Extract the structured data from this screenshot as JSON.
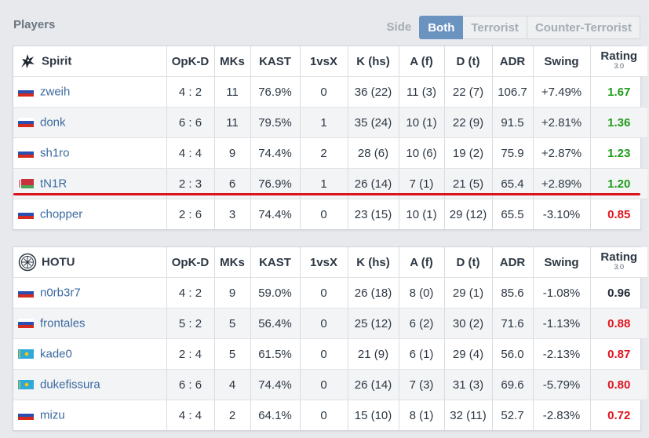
{
  "header": {
    "title": "Players",
    "side_label": "Side",
    "side_buttons": [
      "Both",
      "Terrorist",
      "Counter-Terrorist"
    ],
    "active_side": "Both"
  },
  "columns": [
    "OpK-D",
    "MKs",
    "KAST",
    "1vsX",
    "K (hs)",
    "A (f)",
    "D (t)",
    "ADR",
    "Swing",
    "Rating"
  ],
  "rating_version": "3.0",
  "colors": {
    "rating_good": "#1e9c18",
    "rating_bad": "#e0141c",
    "rating_neutral": "#1f2833",
    "highlight_line": "#d9141f",
    "active_button": "#6b93c0"
  },
  "teams": [
    {
      "name": "Spirit",
      "logo_icon": "spirit-dragon-logo-icon",
      "players": [
        {
          "name": "zweih",
          "flag": "russia-flag-icon",
          "stats": [
            "4 : 2",
            "11",
            "76.9%",
            "0",
            "36 (22)",
            "11 (3)",
            "22 (7)",
            "106.7",
            "+7.49%"
          ],
          "rating": "1.67",
          "rating_class": "good"
        },
        {
          "name": "donk",
          "flag": "russia-flag-icon",
          "stats": [
            "6 : 6",
            "11",
            "79.5%",
            "1",
            "35 (24)",
            "10 (1)",
            "22 (9)",
            "91.5",
            "+2.81%"
          ],
          "rating": "1.36",
          "rating_class": "good"
        },
        {
          "name": "sh1ro",
          "flag": "russia-flag-icon",
          "stats": [
            "4 : 4",
            "9",
            "74.4%",
            "2",
            "28 (6)",
            "10 (6)",
            "19 (2)",
            "75.9",
            "+2.87%"
          ],
          "rating": "1.23",
          "rating_class": "good"
        },
        {
          "name": "tN1R",
          "flag": "belarus-flag-icon",
          "stats": [
            "2 : 3",
            "6",
            "76.9%",
            "1",
            "26 (14)",
            "7 (1)",
            "21 (5)",
            "65.4",
            "+2.89%"
          ],
          "rating": "1.20",
          "rating_class": "good"
        },
        {
          "name": "chopper",
          "flag": "russia-flag-icon",
          "stats": [
            "2 : 6",
            "3",
            "74.4%",
            "0",
            "23 (15)",
            "10 (1)",
            "29 (12)",
            "65.5",
            "-3.10%"
          ],
          "rating": "0.85",
          "rating_class": "bad"
        }
      ]
    },
    {
      "name": "HOTU",
      "logo_icon": "hotu-emblem-logo-icon",
      "players": [
        {
          "name": "n0rb3r7",
          "flag": "russia-flag-icon",
          "stats": [
            "4 : 2",
            "9",
            "59.0%",
            "0",
            "26 (18)",
            "8 (0)",
            "29 (1)",
            "85.6",
            "-1.08%"
          ],
          "rating": "0.96",
          "rating_class": "neutral"
        },
        {
          "name": "frontales",
          "flag": "russia-flag-icon",
          "stats": [
            "5 : 2",
            "5",
            "56.4%",
            "0",
            "25 (12)",
            "6 (2)",
            "30 (2)",
            "71.6",
            "-1.13%"
          ],
          "rating": "0.88",
          "rating_class": "bad"
        },
        {
          "name": "kade0",
          "flag": "kazakhstan-flag-icon",
          "stats": [
            "2 : 4",
            "5",
            "61.5%",
            "0",
            "21 (9)",
            "6 (1)",
            "29 (4)",
            "56.0",
            "-2.13%"
          ],
          "rating": "0.87",
          "rating_class": "bad"
        },
        {
          "name": "dukefissura",
          "flag": "kazakhstan-flag-icon",
          "stats": [
            "6 : 6",
            "4",
            "74.4%",
            "0",
            "26 (14)",
            "7 (3)",
            "31 (3)",
            "69.6",
            "-5.79%"
          ],
          "rating": "0.80",
          "rating_class": "bad"
        },
        {
          "name": "mizu",
          "flag": "russia-flag-icon",
          "stats": [
            "4 : 4",
            "2",
            "64.1%",
            "0",
            "15 (10)",
            "8 (1)",
            "32 (11)",
            "52.7",
            "-2.83%"
          ],
          "rating": "0.72",
          "rating_class": "bad"
        }
      ]
    }
  ]
}
